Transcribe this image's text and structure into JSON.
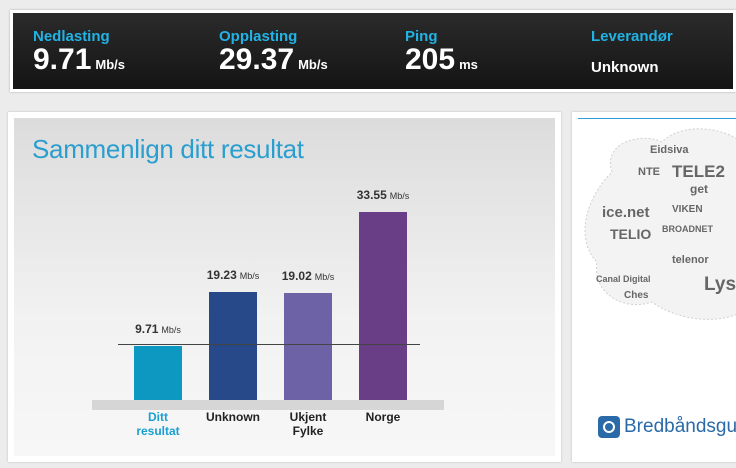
{
  "stats": [
    {
      "label": "Nedlasting",
      "value": 9.71,
      "unit": "Mb/s"
    },
    {
      "label": "Opplasting",
      "value": 29.37,
      "unit": "Mb/s"
    },
    {
      "label": "Ping",
      "value": 205,
      "unit": "ms"
    },
    {
      "label": "Leverandør",
      "value": "Unknown"
    }
  ],
  "chart_data": {
    "type": "bar",
    "title": "Sammenlign ditt resultat",
    "unit": "Mb/s",
    "categories": [
      "Ditt resultat",
      "Unknown",
      "Ukjent Fylke",
      "Norge"
    ],
    "values": [
      9.71,
      19.23,
      19.02,
      33.55
    ],
    "colors": [
      "#0d98c2",
      "#27498a",
      "#6c62a5",
      "#6a3e86"
    ]
  },
  "sidebar": {
    "logos": [
      "Eidsiva",
      "NTE",
      "TELE2",
      "get",
      "ice.net",
      "VIKEN",
      "TELIO",
      "BROADNET",
      "telenor",
      "Canal Digital",
      "Lyse",
      "Ches"
    ],
    "brand": "Bredbåndsguid"
  }
}
